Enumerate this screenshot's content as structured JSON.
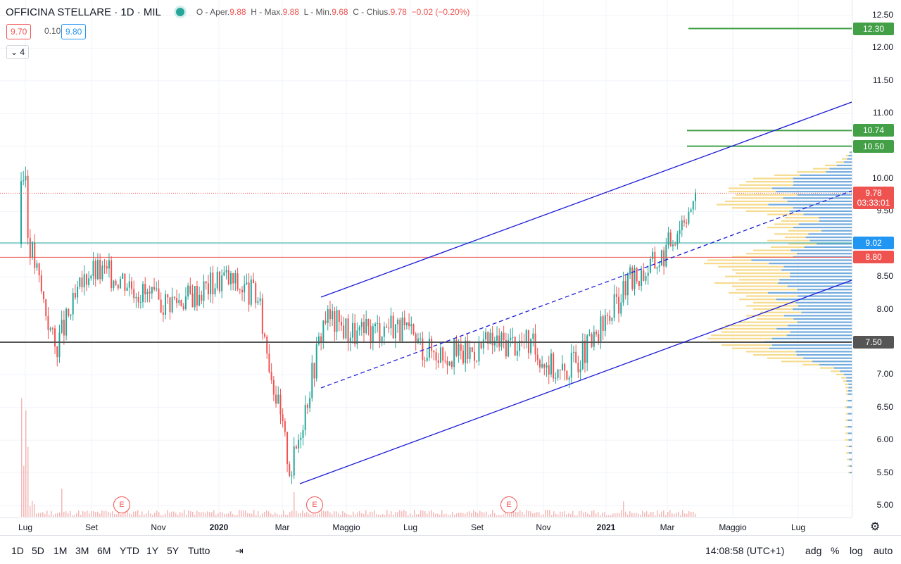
{
  "header": {
    "symbol": "OFFICINA STELLARE · 1D · MIL",
    "ohlc": {
      "open_label": "O - Aper.",
      "open": "9.88",
      "high_label": "H - Max.",
      "high": "9.88",
      "low_label": "L - Min.",
      "low": "9.68",
      "close_label": "C - Chius.",
      "close": "9.78",
      "change": "−0.02 (−0.20%)"
    },
    "bid": "9.70",
    "spread": "0.10",
    "ask": "9.80",
    "studies_toggle": "4"
  },
  "colors": {
    "up": "#26a69a",
    "down": "#ef5350",
    "channel": "#1a1ad8",
    "resistance": "#43a047",
    "support": "#ef5350",
    "level_teal": "#26a69a",
    "level_gray": "#555555",
    "price_line": "#ef5350",
    "vp_up": "#5b9cd6",
    "vp_down": "#f5d782",
    "volume": "#ef9a9a"
  },
  "y_axis": {
    "ticks": [
      "12.50",
      "12.00",
      "11.50",
      "11.00",
      "10.50",
      "10.00",
      "9.50",
      "9.00",
      "8.50",
      "8.00",
      "7.50",
      "7.00",
      "6.50",
      "6.00",
      "5.50",
      "5.00"
    ],
    "labels": [
      {
        "value": "12.30",
        "color": "#43a047"
      },
      {
        "value": "10.74",
        "color": "#43a047"
      },
      {
        "value": "10.50",
        "color": "#43a047"
      },
      {
        "value": "9.02",
        "color": "#2196f3"
      },
      {
        "value": "8.80",
        "color": "#ef5350"
      },
      {
        "value": "7.50",
        "color": "#555555"
      }
    ],
    "last_price": "9.78",
    "countdown": "03:33:01"
  },
  "x_axis": {
    "ticks": [
      {
        "label": "Lug",
        "bold": false
      },
      {
        "label": "Set",
        "bold": false
      },
      {
        "label": "Nov",
        "bold": false
      },
      {
        "label": "2020",
        "bold": true
      },
      {
        "label": "Mar",
        "bold": false
      },
      {
        "label": "Maggio",
        "bold": false
      },
      {
        "label": "Lug",
        "bold": false
      },
      {
        "label": "Set",
        "bold": false
      },
      {
        "label": "Nov",
        "bold": false
      },
      {
        "label": "2021",
        "bold": true
      },
      {
        "label": "Mar",
        "bold": false
      },
      {
        "label": "Maggio",
        "bold": false
      },
      {
        "label": "Lug",
        "bold": false
      }
    ]
  },
  "earnings_marker": "E",
  "bottom_bar": {
    "ranges": [
      "1D",
      "5D",
      "1M",
      "3M",
      "6M",
      "YTD",
      "1Y",
      "5Y",
      "Tutto"
    ],
    "time": "14:08:58 (UTC+1)",
    "adj": "adg",
    "pct": "%",
    "log": "log",
    "auto": "auto"
  },
  "chart_data": {
    "type": "candlestick",
    "interval": "1D",
    "approx_close_path": [
      {
        "date": "2019-07",
        "close": 9.6
      },
      {
        "date": "2019-08",
        "close": 7.4
      },
      {
        "date": "2019-09",
        "close": 8.6
      },
      {
        "date": "2019-10",
        "close": 8.5
      },
      {
        "date": "2019-11",
        "close": 8.1
      },
      {
        "date": "2019-12",
        "close": 8.2
      },
      {
        "date": "2020-01",
        "close": 8.5
      },
      {
        "date": "2020-02",
        "close": 8.2
      },
      {
        "date": "2020-03",
        "close": 5.5
      },
      {
        "date": "2020-04",
        "close": 7.9
      },
      {
        "date": "2020-05",
        "close": 7.6
      },
      {
        "date": "2020-06",
        "close": 7.8
      },
      {
        "date": "2020-07",
        "close": 7.4
      },
      {
        "date": "2020-08",
        "close": 7.3
      },
      {
        "date": "2020-09",
        "close": 7.5
      },
      {
        "date": "2020-10",
        "close": 7.5
      },
      {
        "date": "2020-11",
        "close": 7.0
      },
      {
        "date": "2020-12",
        "close": 7.5
      },
      {
        "date": "2021-01",
        "close": 8.4
      },
      {
        "date": "2021-02",
        "close": 8.8
      },
      {
        "date": "2021-03",
        "close": 9.78
      }
    ],
    "ylim": [
      4.9,
      12.55
    ]
  }
}
